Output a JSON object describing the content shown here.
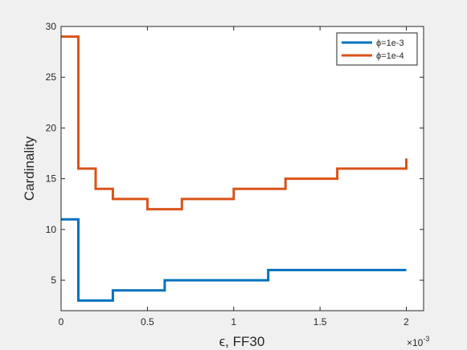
{
  "chart_data": {
    "type": "line",
    "step": true,
    "title": "",
    "xlabel": "ϵ, FF30",
    "ylabel": "Cardinality",
    "xlim": [
      0,
      0.0021
    ],
    "ylim": [
      2,
      30
    ],
    "x_ticks": [
      0,
      0.0005,
      0.001,
      0.0015,
      0.002
    ],
    "x_tick_labels": [
      "0",
      "0.5",
      "1",
      "1.5",
      "2"
    ],
    "x_exponent_label": "×10",
    "x_exponent_sup": "-3",
    "y_ticks": [
      5,
      10,
      15,
      20,
      25,
      30
    ],
    "y_tick_labels": [
      "5",
      "10",
      "15",
      "20",
      "25",
      "30"
    ],
    "grid": false,
    "legend_position": "top-right",
    "series": [
      {
        "name": "ϕ=1e-3",
        "color": "#0072BD",
        "x": [
          0,
          0.0001,
          0.0003,
          0.0006,
          0.0012,
          0.002
        ],
        "y": [
          11,
          3,
          4,
          5,
          6,
          6
        ]
      },
      {
        "name": "ϕ=1e-4",
        "color": "#D95319",
        "x": [
          0,
          0.0001,
          0.0002,
          0.0003,
          0.0005,
          0.0007,
          0.001,
          0.0013,
          0.0016,
          0.002
        ],
        "y": [
          29,
          16,
          14,
          13,
          12,
          13,
          14,
          15,
          16,
          17
        ]
      }
    ]
  }
}
